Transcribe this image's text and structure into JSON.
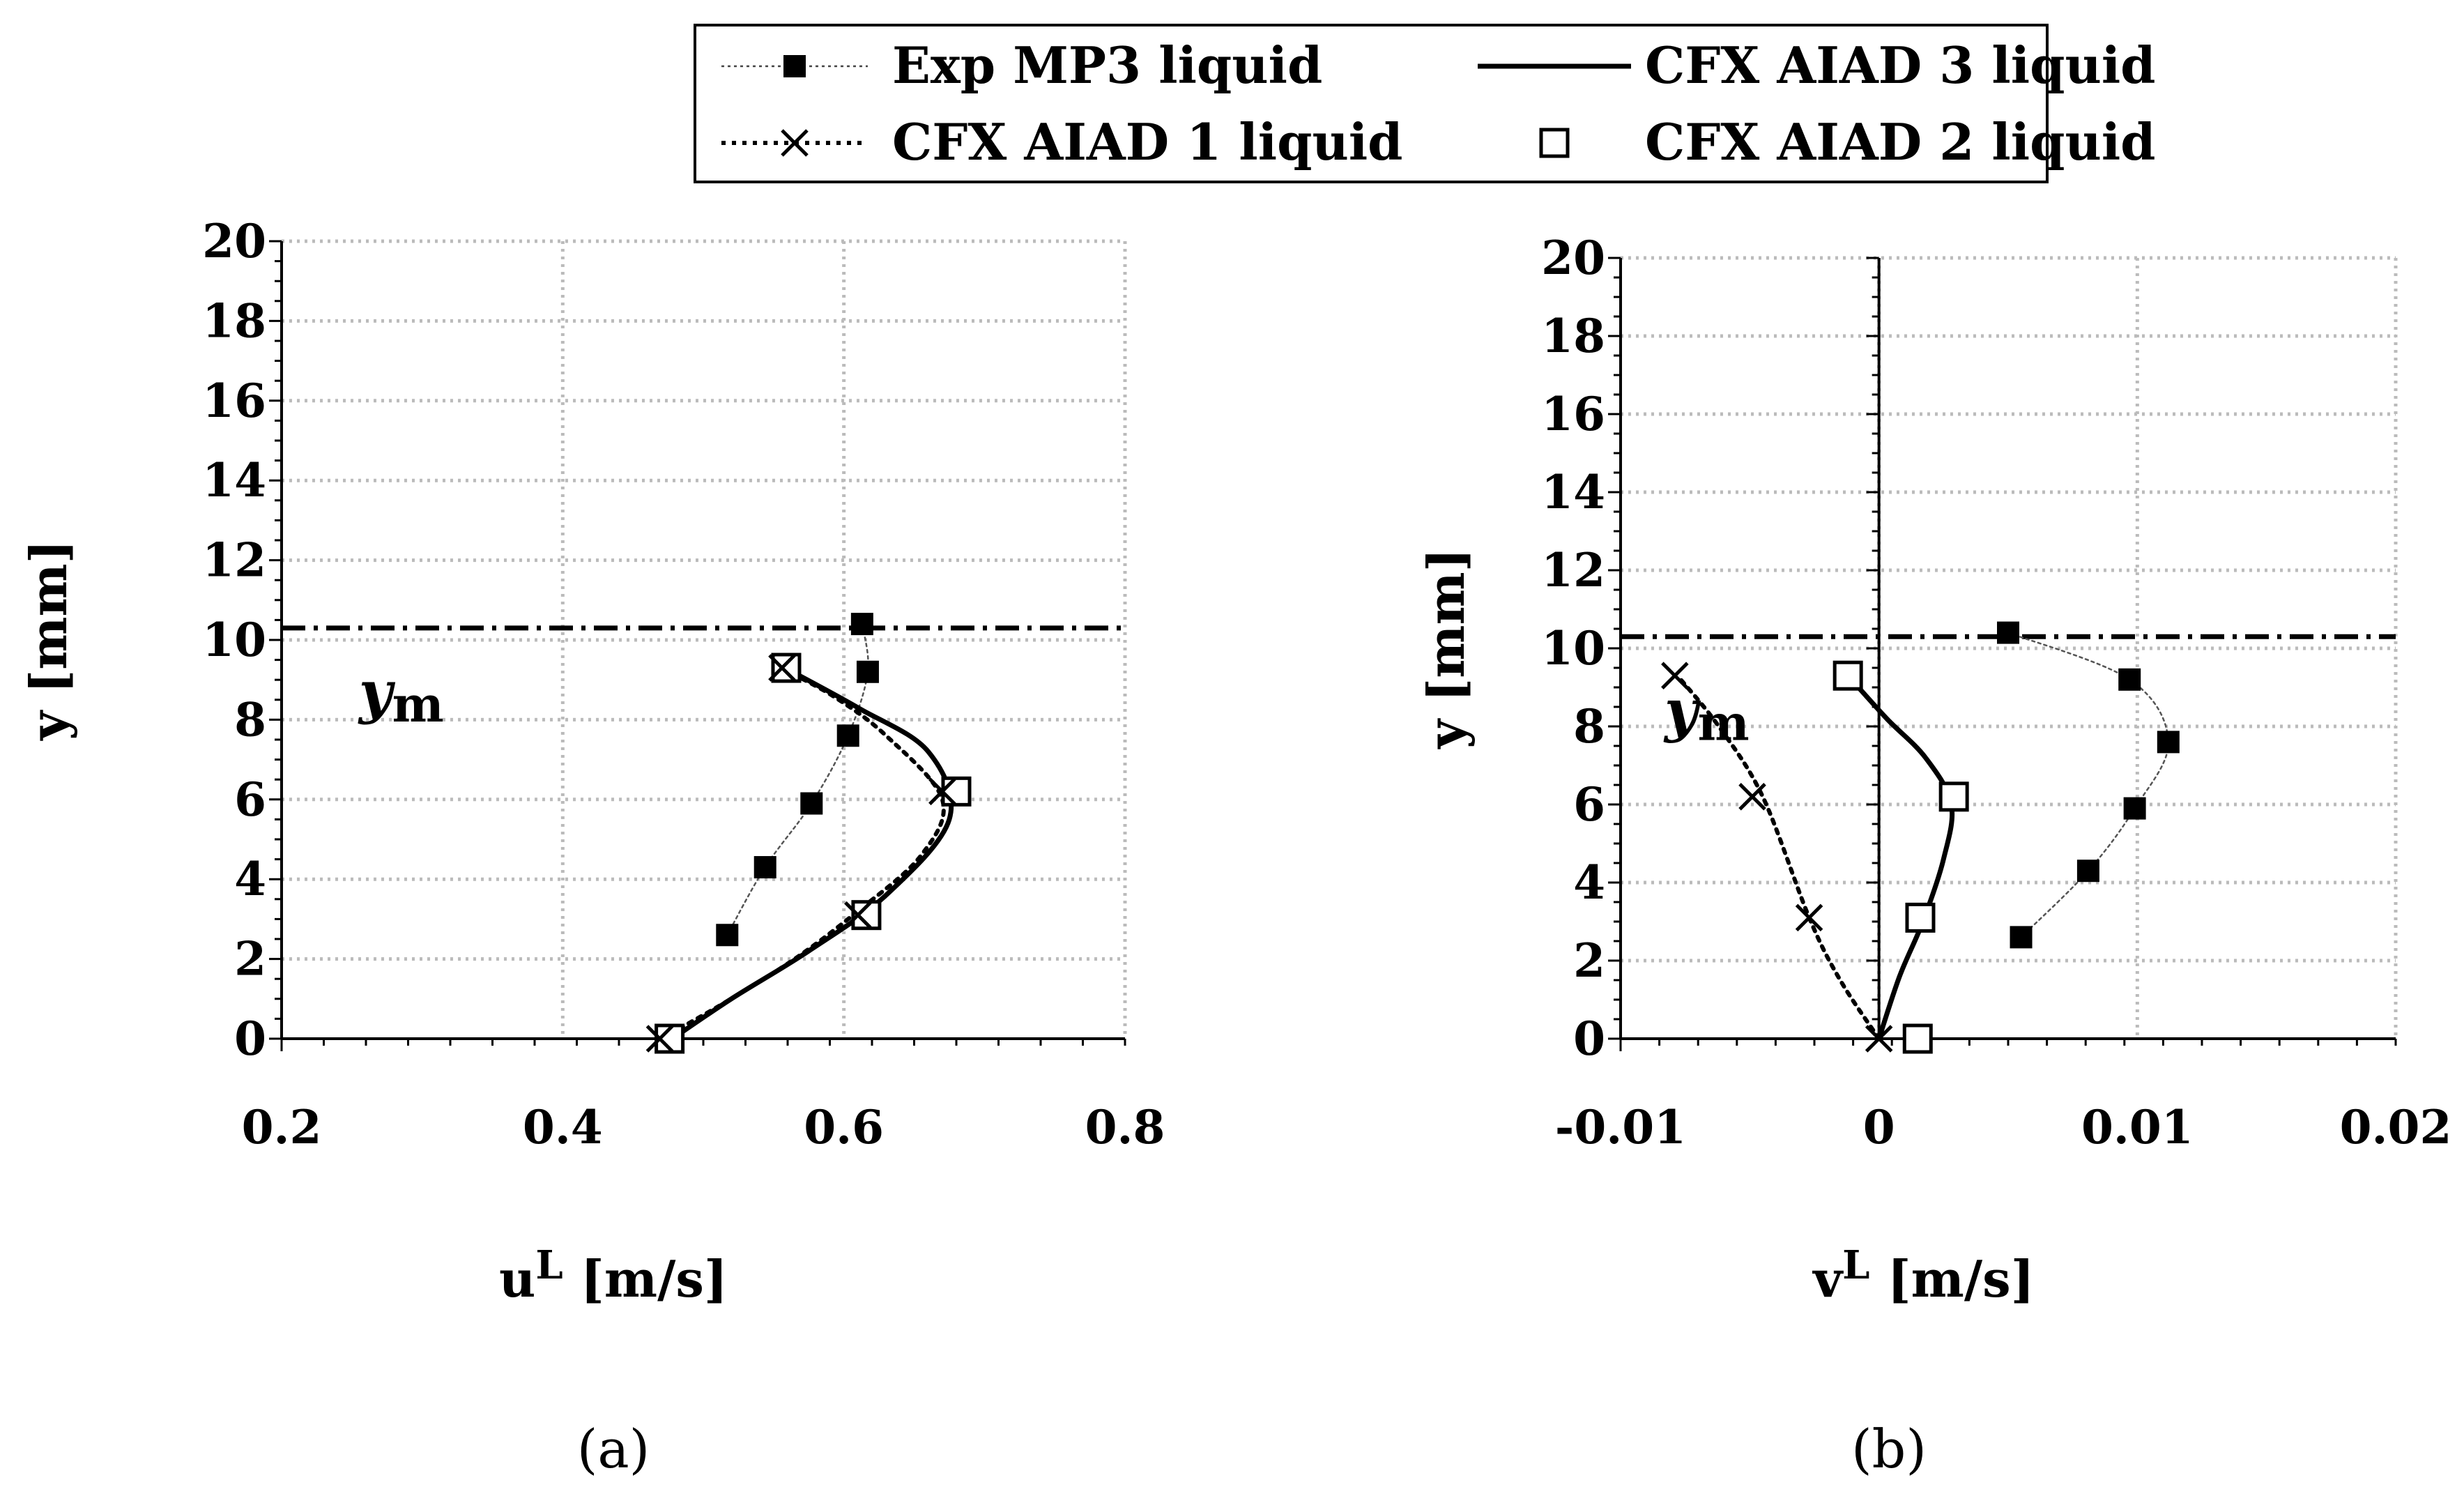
{
  "legend": {
    "entries": [
      {
        "name": "Exp MP3 liquid",
        "marker": "filled-square",
        "line": "thin-dotted"
      },
      {
        "name": "CFX AIAD 3 liquid",
        "marker": "none",
        "line": "solid"
      },
      {
        "name": "CFX AIAD 1 liquid",
        "marker": "cross",
        "line": "dotted"
      },
      {
        "name": "CFX AIAD 2 liquid",
        "marker": "open-square",
        "line": "none"
      }
    ]
  },
  "chart_data": [
    {
      "type": "line",
      "panel_label": "(a)",
      "xlabel_main": "u",
      "xlabel_sup": "L",
      "xlabel_unit": " [m/s]",
      "ylabel": "y [mm]",
      "xlim": [
        0.2,
        0.8
      ],
      "ylim": [
        0,
        20
      ],
      "xticks": [
        0.2,
        0.4,
        0.6,
        0.8
      ],
      "xtick_labels": [
        "0.2",
        "0.4",
        "0.6",
        "0.8"
      ],
      "yticks": [
        0,
        2,
        4,
        6,
        8,
        10,
        12,
        14,
        16,
        18,
        20
      ],
      "ytick_labels": [
        "0",
        "2",
        "4",
        "6",
        "8",
        "10",
        "12",
        "14",
        "16",
        "18",
        "20"
      ],
      "grid": true,
      "ym_line": 10.3,
      "ym_label_main": "y",
      "ym_label_sub": "m",
      "ym_label_anchor": [
        0.255,
        8.2
      ],
      "series": [
        {
          "name": "Exp MP3 liquid",
          "x": [
            0.517,
            0.544,
            0.577,
            0.603,
            0.617,
            0.613
          ],
          "y": [
            2.6,
            4.3,
            5.9,
            7.6,
            9.2,
            10.4
          ]
        },
        {
          "name": "CFX AIAD 3 liquid",
          "x": [
            0.478,
            0.52,
            0.575,
            0.63,
            0.675,
            0.66,
            0.61,
            0.558
          ],
          "y": [
            0.0,
            1.0,
            2.2,
            3.6,
            5.5,
            7.2,
            8.3,
            9.3
          ]
        },
        {
          "name": "CFX AIAD 1 liquid",
          "x": [
            0.47,
            0.515,
            0.565,
            0.61,
            0.655,
            0.67,
            0.63,
            0.592,
            0.555
          ],
          "y": [
            0.0,
            0.9,
            2.0,
            3.2,
            4.6,
            6.0,
            7.6,
            8.6,
            9.3
          ]
        },
        {
          "name": "CFX AIAD 2 liquid",
          "x": [
            0.476,
            0.616,
            0.68,
            0.559
          ],
          "y": [
            0.0,
            3.1,
            6.2,
            9.3
          ]
        },
        {
          "name": "CFX AIAD 1 liquid markers",
          "x": [
            0.469,
            0.61,
            0.67,
            0.556
          ],
          "y": [
            0.0,
            3.1,
            6.2,
            9.3
          ]
        }
      ]
    },
    {
      "type": "line",
      "panel_label": "(b)",
      "xlabel_main": "v",
      "xlabel_sup": "L",
      "xlabel_unit": " [m/s]",
      "ylabel": "y [mm]",
      "xlim": [
        -0.01,
        0.02
      ],
      "ylim": [
        0,
        20
      ],
      "xticks": [
        -0.01,
        0,
        0.01,
        0.02
      ],
      "xtick_labels": [
        "-0.01",
        "0",
        "0.01",
        "0.02"
      ],
      "yticks": [
        0,
        2,
        4,
        6,
        8,
        10,
        12,
        14,
        16,
        18,
        20
      ],
      "ytick_labels": [
        "0",
        "2",
        "4",
        "6",
        "8",
        "10",
        "12",
        "14",
        "16",
        "18",
        "20"
      ],
      "grid": true,
      "ym_line": 10.3,
      "ym_label_main": "y",
      "ym_label_sub": "m",
      "ym_label_anchor": [
        -0.0083,
        7.9
      ],
      "series": [
        {
          "name": "Exp MP3 liquid",
          "x": [
            0.0055,
            0.0081,
            0.0099,
            0.0112,
            0.0097,
            0.005
          ],
          "y": [
            2.6,
            4.3,
            5.9,
            7.6,
            9.2,
            10.4
          ]
        },
        {
          "name": "CFX AIAD 3 liquid",
          "x": [
            0.0,
            0.0008,
            0.0017,
            0.0025,
            0.0028,
            0.0018,
            0.0003,
            -0.0012
          ],
          "y": [
            0.0,
            1.6,
            3.0,
            4.6,
            6.0,
            7.2,
            8.2,
            9.3
          ]
        },
        {
          "name": "CFX AIAD 1 liquid",
          "x": [
            0.0,
            -0.0015,
            -0.0027,
            -0.0045,
            -0.0062,
            -0.0078
          ],
          "y": [
            0.0,
            1.5,
            3.1,
            6.2,
            8.0,
            9.3
          ]
        },
        {
          "name": "CFX AIAD 2 liquid",
          "x": [
            0.0015,
            0.0016,
            0.0029,
            -0.0012
          ],
          "y": [
            0.0,
            3.1,
            6.2,
            9.3
          ]
        },
        {
          "name": "CFX AIAD 1 liquid markers",
          "x": [
            0.0,
            -0.0027,
            -0.0049,
            -0.0079
          ],
          "y": [
            0.0,
            3.1,
            6.2,
            9.3
          ]
        }
      ]
    }
  ]
}
